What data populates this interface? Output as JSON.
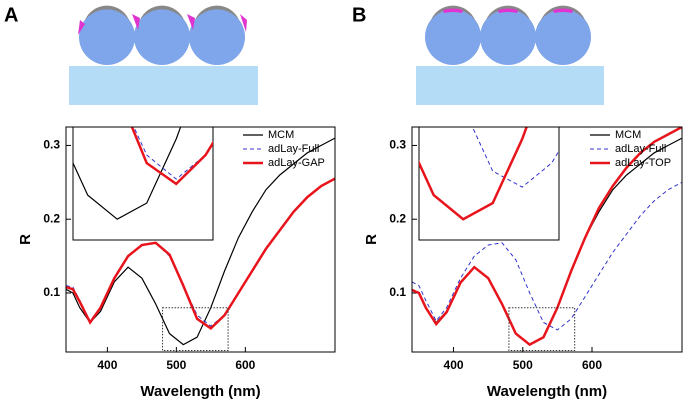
{
  "panels": [
    "A",
    "B"
  ],
  "chart_data": [
    {
      "type": "line",
      "xlabel": "Wavelength (nm)",
      "ylabel": "R",
      "x": [
        340,
        350,
        360,
        375,
        390,
        410,
        430,
        450,
        470,
        490,
        510,
        530,
        550,
        570,
        590,
        610,
        630,
        650,
        670,
        690,
        710,
        730
      ],
      "series": [
        {
          "name": "MCM",
          "color": "#000000",
          "line_style": "solid",
          "linewidth": 1.2,
          "values": [
            0.105,
            0.1,
            0.08,
            0.06,
            0.075,
            0.115,
            0.135,
            0.12,
            0.085,
            0.045,
            0.03,
            0.04,
            0.08,
            0.13,
            0.175,
            0.21,
            0.24,
            0.26,
            0.275,
            0.29,
            0.3,
            0.31
          ]
        },
        {
          "name": "adLay-Full",
          "color": "#3333cc",
          "line_style": "dashed",
          "linewidth": 1,
          "values": [
            0.11,
            0.108,
            0.09,
            0.062,
            0.08,
            0.12,
            0.15,
            0.165,
            0.168,
            0.15,
            0.11,
            0.07,
            0.055,
            0.07,
            0.1,
            0.13,
            0.16,
            0.185,
            0.21,
            0.23,
            0.245,
            0.255
          ]
        },
        {
          "name": "adLay-GAP",
          "color": "#e8141c",
          "line_style": "solid",
          "linewidth": 2.5,
          "values": [
            0.108,
            0.105,
            0.088,
            0.06,
            0.08,
            0.12,
            0.15,
            0.165,
            0.168,
            0.152,
            0.11,
            0.065,
            0.052,
            0.07,
            0.1,
            0.13,
            0.16,
            0.185,
            0.21,
            0.23,
            0.245,
            0.255
          ]
        }
      ],
      "xlim": [
        340,
        730
      ],
      "xticks": [
        400,
        500,
        600
      ],
      "ylim": [
        0.02,
        0.325
      ],
      "yticks": [
        0.1,
        0.2,
        0.3
      ],
      "legend": "upper right"
    },
    {
      "type": "line",
      "xlabel": "Wavelength (nm)",
      "ylabel": "R",
      "x": [
        340,
        350,
        360,
        375,
        390,
        410,
        430,
        450,
        470,
        490,
        510,
        530,
        550,
        570,
        590,
        610,
        630,
        650,
        670,
        690,
        710,
        730
      ],
      "series": [
        {
          "name": "MCM",
          "color": "#000000",
          "line_style": "solid",
          "linewidth": 1.2,
          "values": [
            0.105,
            0.1,
            0.08,
            0.06,
            0.075,
            0.115,
            0.135,
            0.12,
            0.085,
            0.045,
            0.03,
            0.04,
            0.08,
            0.13,
            0.175,
            0.21,
            0.24,
            0.26,
            0.275,
            0.29,
            0.3,
            0.31
          ]
        },
        {
          "name": "adLay-Full",
          "color": "#3333cc",
          "line_style": "dashed",
          "linewidth": 1,
          "values": [
            0.115,
            0.11,
            0.09,
            0.062,
            0.08,
            0.12,
            0.15,
            0.165,
            0.168,
            0.145,
            0.1,
            0.06,
            0.05,
            0.065,
            0.095,
            0.125,
            0.155,
            0.18,
            0.205,
            0.225,
            0.24,
            0.25
          ]
        },
        {
          "name": "adLay-TOP",
          "color": "#e8141c",
          "line_style": "solid",
          "linewidth": 2.5,
          "values": [
            0.104,
            0.1,
            0.08,
            0.058,
            0.074,
            0.114,
            0.135,
            0.12,
            0.085,
            0.045,
            0.03,
            0.04,
            0.08,
            0.13,
            0.175,
            0.215,
            0.245,
            0.27,
            0.29,
            0.305,
            0.315,
            0.325
          ]
        }
      ],
      "xlim": [
        340,
        730
      ],
      "xticks": [
        400,
        500,
        600
      ],
      "ylim": [
        0.02,
        0.325
      ],
      "yticks": [
        0.1,
        0.2,
        0.3
      ],
      "legend": "upper right"
    }
  ]
}
